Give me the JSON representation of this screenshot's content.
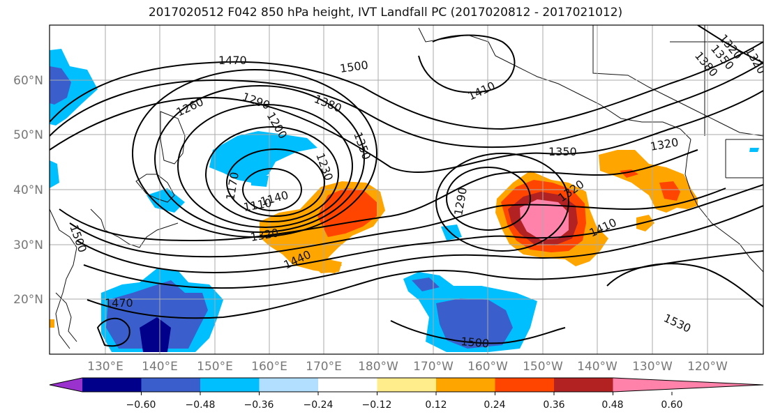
{
  "title": "2017020512 F042 850 hPa height, IVT Landfall PC (2017020812 - 2017021012)",
  "map": {
    "lon_labels": [
      "130°E",
      "140°E",
      "150°E",
      "160°E",
      "170°E",
      "180°W",
      "170°W",
      "160°W",
      "150°W",
      "140°W",
      "130°W",
      "120°W"
    ],
    "lat_labels": [
      "60°N",
      "50°N",
      "40°N",
      "30°N",
      "20°N"
    ],
    "contour_labels": [
      "1470",
      "1500",
      "1290",
      "1260",
      "1380",
      "1410",
      "1350",
      "1320",
      "1350",
      "1320",
      "1230",
      "1200",
      "1170",
      "1110",
      "1140",
      "1320",
      "1440",
      "1290",
      "1320",
      "1410",
      "1500",
      "1470",
      "1500",
      "1530",
      "1320",
      "1350",
      "1380"
    ]
  },
  "colorbar": {
    "tick_labels": [
      "−0.60",
      "−0.48",
      "−0.36",
      "−0.24",
      "−0.12",
      "0.12",
      "0.24",
      "0.36",
      "0.48",
      "0.60"
    ],
    "colors": [
      "#9a32cd",
      "#00008b",
      "#3a5fcd",
      "#00bfff",
      "#b2dfff",
      "#ffffff",
      "#ffec8b",
      "#ffa500",
      "#ff4500",
      "#b22222",
      "#ff82ab"
    ]
  }
}
